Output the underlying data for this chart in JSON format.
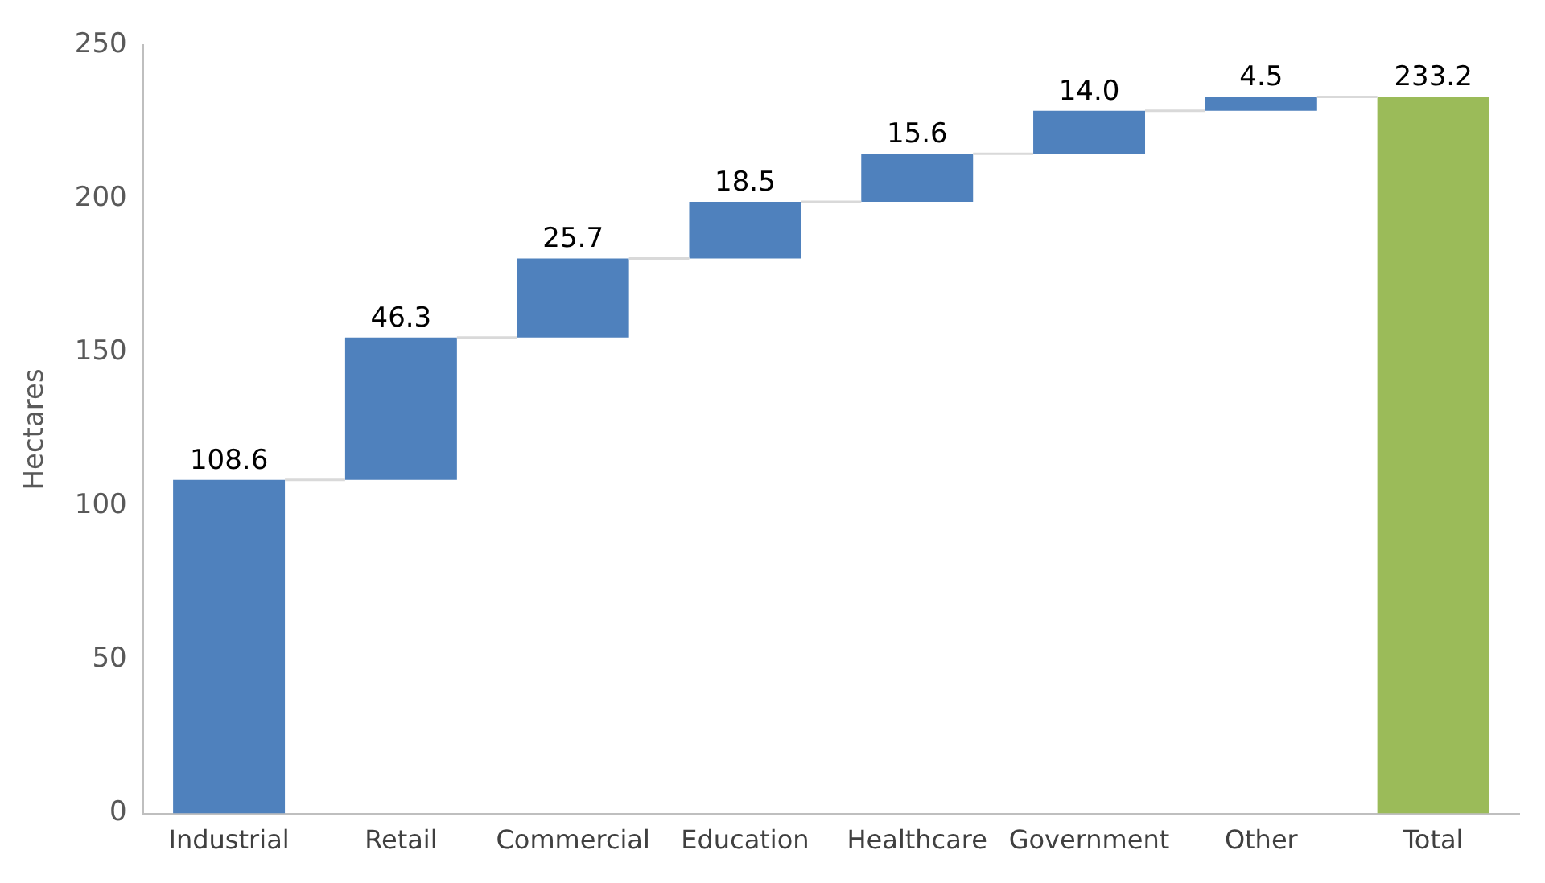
{
  "chart_data": {
    "type": "bar",
    "ylabel": "Hectares",
    "categories": [
      "Industrial",
      "Retail",
      "Commercial",
      "Education",
      "Healthcare",
      "Government",
      "Other",
      "Total"
    ],
    "values": [
      108.6,
      46.3,
      25.7,
      18.5,
      15.6,
      14.0,
      4.5,
      233.2
    ],
    "base": [
      0,
      108.6,
      154.9,
      180.6,
      199.1,
      214.7,
      228.7,
      0
    ],
    "colors": [
      "#4f81bd",
      "#4f81bd",
      "#4f81bd",
      "#4f81bd",
      "#4f81bd",
      "#4f81bd",
      "#4f81bd",
      "#9bbb59"
    ],
    "value_labels": [
      "108.6",
      "46.3",
      "25.7",
      "18.5",
      "15.6",
      "14.0",
      "4.5",
      "233.2"
    ],
    "ylim": [
      0,
      250
    ],
    "yticks": [
      0,
      50,
      100,
      150,
      200,
      250
    ],
    "grid": false,
    "legend": false
  }
}
